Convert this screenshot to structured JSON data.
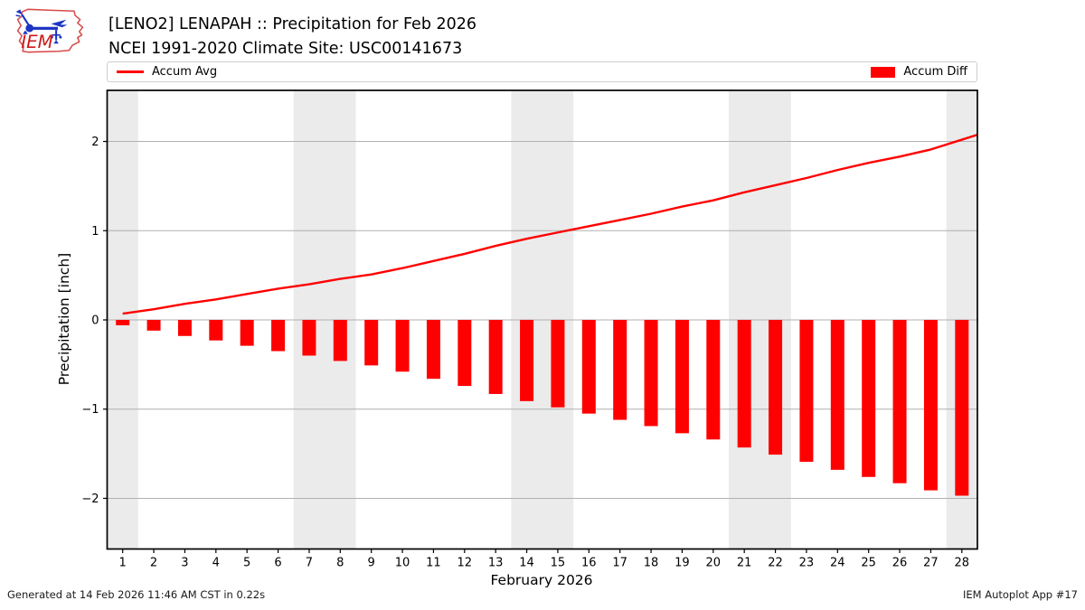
{
  "header": {
    "logo_text": "IEM",
    "title_line1": "[LENO2] LENAPAH :: Precipitation for Feb 2026",
    "title_line2": "NCEI 1991-2020 Climate Site: USC00141673"
  },
  "legend": {
    "avg_label": "Accum Avg",
    "diff_label": "Accum Diff"
  },
  "footer": {
    "generated": "Generated at 14 Feb 2026 11:46 AM CST in 0.22s",
    "app": "IEM Autoplot App #17"
  },
  "colors": {
    "accent_red": "#ff0000",
    "weekend_band": "#ebebeb",
    "gridline": "#b0b0b0",
    "spine": "#000000",
    "logo_red": "#d84a4a",
    "logo_blue": "#1d35c4"
  },
  "chart_data": {
    "type": "combo",
    "x": [
      1,
      2,
      3,
      4,
      5,
      6,
      7,
      8,
      9,
      10,
      11,
      12,
      13,
      14,
      15,
      16,
      17,
      18,
      19,
      20,
      21,
      22,
      23,
      24,
      25,
      26,
      27,
      28
    ],
    "xlabel": "February 2026",
    "ylabel": "Precipitation [inch]",
    "ylim": [
      -2.57,
      2.57
    ],
    "yticks": [
      -2,
      -1,
      0,
      1,
      2
    ],
    "grid": true,
    "legend_position": "top",
    "weekend_bands": [
      [
        0.5,
        1.5
      ],
      [
        6.5,
        8.5
      ],
      [
        13.5,
        15.5
      ],
      [
        20.5,
        22.5
      ],
      [
        27.5,
        28.5
      ]
    ],
    "series": [
      {
        "name": "Accum Avg",
        "type": "line",
        "color": "#ff0000",
        "values": [
          0.07,
          0.12,
          0.18,
          0.23,
          0.29,
          0.35,
          0.4,
          0.46,
          0.51,
          0.58,
          0.66,
          0.74,
          0.83,
          0.91,
          0.98,
          1.05,
          1.12,
          1.19,
          1.27,
          1.34,
          1.43,
          1.51,
          1.59,
          1.68,
          1.76,
          1.83,
          1.91,
          2.02
        ]
      },
      {
        "name": "Accum Diff",
        "type": "bar",
        "color": "#ff0000",
        "values": [
          -0.06,
          -0.12,
          -0.18,
          -0.23,
          -0.29,
          -0.35,
          -0.4,
          -0.46,
          -0.51,
          -0.58,
          -0.66,
          -0.74,
          -0.83,
          -0.91,
          -0.98,
          -1.05,
          -1.12,
          -1.19,
          -1.27,
          -1.34,
          -1.43,
          -1.51,
          -1.59,
          -1.68,
          -1.76,
          -1.83,
          -1.91,
          -1.97
        ]
      }
    ]
  }
}
